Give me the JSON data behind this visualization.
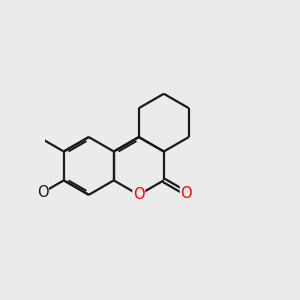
{
  "bg_color": "#ebebeb",
  "bond_color": "#1a1a1a",
  "o_color": "#ff0000",
  "f_color": "#cc00cc",
  "lw": 1.6,
  "fs": 10.5,
  "bl": 1.0,
  "xlim": [
    -1.5,
    6.0
  ],
  "ylim": [
    -3.5,
    4.5
  ]
}
